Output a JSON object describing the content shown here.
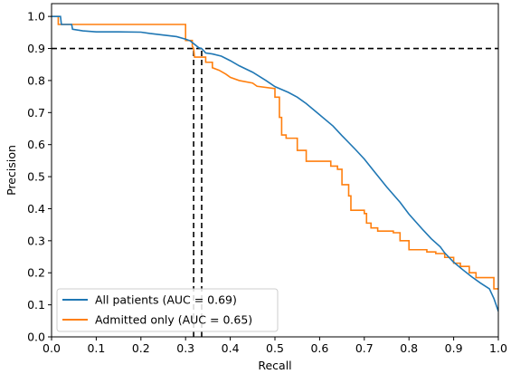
{
  "chart_data": {
    "type": "line",
    "title": "",
    "xlabel": "Recall",
    "ylabel": "Precision",
    "xlim": [
      0,
      1
    ],
    "ylim": [
      0,
      1.04
    ],
    "xticks": [
      "0.0",
      "0.1",
      "0.2",
      "0.3",
      "0.4",
      "0.5",
      "0.6",
      "0.7",
      "0.8",
      "0.9",
      "1.0"
    ],
    "yticks": [
      "0.0",
      "0.1",
      "0.2",
      "0.3",
      "0.4",
      "0.5",
      "0.6",
      "0.7",
      "0.8",
      "0.9",
      "1.0"
    ],
    "grid": false,
    "legend_position": "lower-left",
    "reference_lines": {
      "precision_threshold": 0.9,
      "recall_all": 0.336,
      "recall_admitted": 0.318,
      "color": "#000000",
      "style": "dashed"
    },
    "series": [
      {
        "name": "All patients (AUC = 0.69)",
        "color": "#1f77b4",
        "step": false,
        "points": [
          [
            0.0,
            1.0
          ],
          [
            0.02,
            1.0
          ],
          [
            0.022,
            0.975
          ],
          [
            0.045,
            0.975
          ],
          [
            0.047,
            0.96
          ],
          [
            0.07,
            0.955
          ],
          [
            0.1,
            0.952
          ],
          [
            0.15,
            0.952
          ],
          [
            0.2,
            0.951
          ],
          [
            0.22,
            0.947
          ],
          [
            0.25,
            0.942
          ],
          [
            0.28,
            0.937
          ],
          [
            0.3,
            0.929
          ],
          [
            0.31,
            0.924
          ],
          [
            0.32,
            0.913
          ],
          [
            0.33,
            0.902
          ],
          [
            0.336,
            0.9
          ],
          [
            0.345,
            0.886
          ],
          [
            0.36,
            0.883
          ],
          [
            0.38,
            0.876
          ],
          [
            0.4,
            0.862
          ],
          [
            0.42,
            0.846
          ],
          [
            0.45,
            0.826
          ],
          [
            0.48,
            0.8
          ],
          [
            0.5,
            0.781
          ],
          [
            0.53,
            0.763
          ],
          [
            0.55,
            0.748
          ],
          [
            0.57,
            0.728
          ],
          [
            0.6,
            0.693
          ],
          [
            0.63,
            0.658
          ],
          [
            0.65,
            0.628
          ],
          [
            0.68,
            0.585
          ],
          [
            0.7,
            0.555
          ],
          [
            0.72,
            0.52
          ],
          [
            0.75,
            0.468
          ],
          [
            0.78,
            0.42
          ],
          [
            0.8,
            0.383
          ],
          [
            0.83,
            0.336
          ],
          [
            0.85,
            0.306
          ],
          [
            0.87,
            0.281
          ],
          [
            0.88,
            0.262
          ],
          [
            0.9,
            0.233
          ],
          [
            0.92,
            0.21
          ],
          [
            0.94,
            0.188
          ],
          [
            0.96,
            0.168
          ],
          [
            0.98,
            0.15
          ],
          [
            0.99,
            0.12
          ],
          [
            1.0,
            0.08
          ]
        ]
      },
      {
        "name": "Admitted only (AUC = 0.65)",
        "color": "#ff7f0e",
        "step": true,
        "points": [
          [
            0.0,
            1.0
          ],
          [
            0.015,
            1.0
          ],
          [
            0.015,
            0.975
          ],
          [
            0.3,
            0.975
          ],
          [
            0.3,
            0.925
          ],
          [
            0.315,
            0.925
          ],
          [
            0.315,
            0.907
          ],
          [
            0.318,
            0.9
          ],
          [
            0.32,
            0.873
          ],
          [
            0.345,
            0.873
          ],
          [
            0.345,
            0.857
          ],
          [
            0.36,
            0.857
          ],
          [
            0.36,
            0.84
          ],
          [
            0.375,
            0.832
          ],
          [
            0.39,
            0.82
          ],
          [
            0.4,
            0.81
          ],
          [
            0.42,
            0.8
          ],
          [
            0.45,
            0.792
          ],
          [
            0.46,
            0.782
          ],
          [
            0.5,
            0.775
          ],
          [
            0.5,
            0.748
          ],
          [
            0.51,
            0.748
          ],
          [
            0.51,
            0.685
          ],
          [
            0.515,
            0.685
          ],
          [
            0.515,
            0.63
          ],
          [
            0.525,
            0.63
          ],
          [
            0.525,
            0.62
          ],
          [
            0.55,
            0.62
          ],
          [
            0.55,
            0.582
          ],
          [
            0.57,
            0.582
          ],
          [
            0.57,
            0.548
          ],
          [
            0.625,
            0.548
          ],
          [
            0.625,
            0.533
          ],
          [
            0.64,
            0.533
          ],
          [
            0.64,
            0.523
          ],
          [
            0.65,
            0.523
          ],
          [
            0.65,
            0.475
          ],
          [
            0.665,
            0.475
          ],
          [
            0.665,
            0.44
          ],
          [
            0.67,
            0.44
          ],
          [
            0.67,
            0.395
          ],
          [
            0.7,
            0.395
          ],
          [
            0.7,
            0.385
          ],
          [
            0.705,
            0.385
          ],
          [
            0.705,
            0.355
          ],
          [
            0.715,
            0.355
          ],
          [
            0.715,
            0.34
          ],
          [
            0.73,
            0.34
          ],
          [
            0.73,
            0.33
          ],
          [
            0.765,
            0.33
          ],
          [
            0.765,
            0.325
          ],
          [
            0.78,
            0.325
          ],
          [
            0.78,
            0.3
          ],
          [
            0.8,
            0.3
          ],
          [
            0.8,
            0.272
          ],
          [
            0.84,
            0.272
          ],
          [
            0.84,
            0.265
          ],
          [
            0.86,
            0.265
          ],
          [
            0.86,
            0.26
          ],
          [
            0.88,
            0.26
          ],
          [
            0.88,
            0.248
          ],
          [
            0.9,
            0.248
          ],
          [
            0.9,
            0.23
          ],
          [
            0.915,
            0.23
          ],
          [
            0.915,
            0.22
          ],
          [
            0.935,
            0.22
          ],
          [
            0.935,
            0.2
          ],
          [
            0.95,
            0.2
          ],
          [
            0.95,
            0.185
          ],
          [
            0.99,
            0.185
          ],
          [
            0.99,
            0.15
          ],
          [
            1.0,
            0.15
          ]
        ]
      }
    ]
  }
}
